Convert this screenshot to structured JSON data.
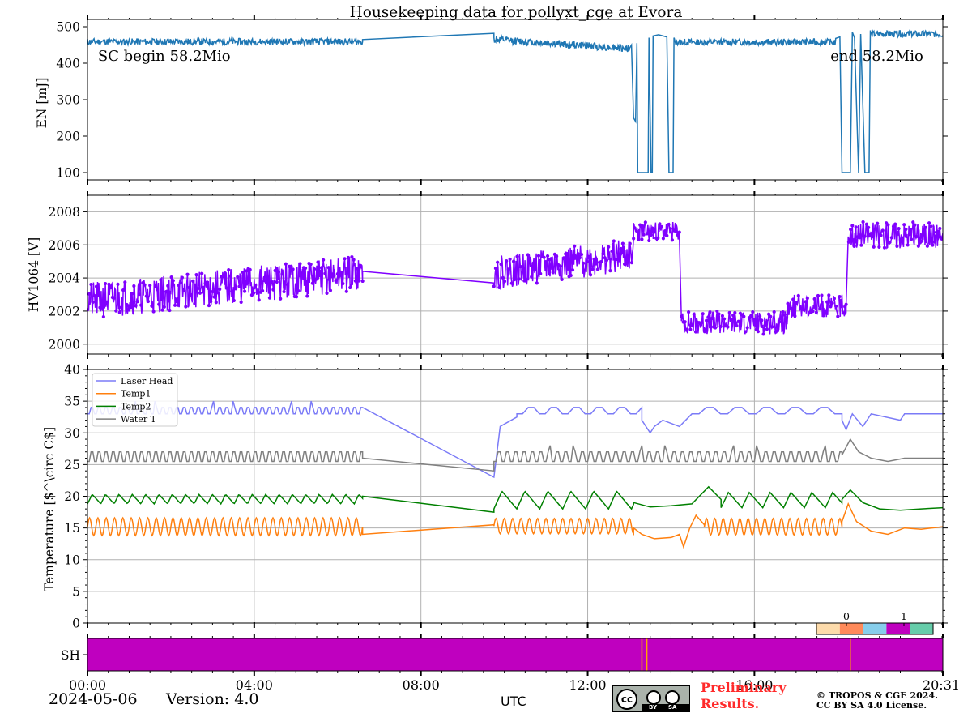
{
  "title": "Housekeeping data for pollyxt_cge at Evora",
  "date": "2024-05-06",
  "version_label": "Version: 4.0",
  "utc_label": "UTC",
  "preliminary_line1": "Preliminary",
  "preliminary_line2": "Results.",
  "copyright_line1": "© TROPOS & CGE 2024.",
  "copyright_line2": "CC BY SA 4.0 License.",
  "cc_badge": {
    "by": "BY",
    "sa": "SA",
    "cc": "cc"
  },
  "colors": {
    "energy": "#1f77b4",
    "hv": "#8000ff",
    "laser_head": "#7b7bf7",
    "temp1": "#ff7f0e",
    "temp2": "#008000",
    "water_t": "#808080",
    "sh_fill": "#bf00bf",
    "sh_mark": "#ffa500",
    "grid": "#b0b0b0",
    "preliminary": "#ff2a2a"
  },
  "chart_data": [
    {
      "type": "line",
      "panel": "energy",
      "ylabel": "EN [mJ]",
      "xlim": [
        0,
        20.52
      ],
      "ylim": [
        80,
        520
      ],
      "yticks": [
        100,
        200,
        300,
        400,
        500
      ],
      "grid": false,
      "annotations": [
        {
          "text": "SC begin 58.2Mio",
          "x": 0.25,
          "y": 420,
          "anchor": "start"
        },
        {
          "text": "end 58.2Mio",
          "x": 20.05,
          "y": 420,
          "anchor": "end"
        }
      ],
      "series": [
        {
          "color": "#1f77b4",
          "segments": [
            {
              "type": "noise",
              "x0": 0,
              "x1": 6.6,
              "base": 459,
              "amp": 9,
              "seed": 11
            },
            {
              "type": "points",
              "points": [
                [
                  6.6,
                  465
                ],
                [
                  9.75,
                  482
                ]
              ]
            },
            {
              "type": "noise",
              "x0": 9.75,
              "x1": 13.0,
              "base": 465,
              "amp": 10,
              "seed": 12,
              "trend": -25
            },
            {
              "type": "points",
              "points": [
                [
                  13.0,
                  440
                ],
                [
                  13.05,
                  450
                ],
                [
                  13.1,
                  250
                ],
                [
                  13.15,
                  240
                ],
                [
                  13.18,
                  455
                ],
                [
                  13.2,
                  100
                ],
                [
                  13.45,
                  100
                ],
                [
                  13.47,
                  470
                ],
                [
                  13.52,
                  100
                ],
                [
                  13.55,
                  100
                ],
                [
                  13.57,
                  475
                ],
                [
                  13.7,
                  478
                ],
                [
                  13.9,
                  472
                ],
                [
                  13.95,
                  100
                ],
                [
                  14.05,
                  100
                ],
                [
                  14.07,
                  470
                ]
              ]
            },
            {
              "type": "noise",
              "x0": 14.07,
              "x1": 17.95,
              "base": 458,
              "amp": 9,
              "seed": 13
            },
            {
              "type": "points",
              "points": [
                [
                  17.95,
                  468
                ],
                [
                  18.05,
                  472
                ],
                [
                  18.1,
                  100
                ],
                [
                  18.3,
                  100
                ],
                [
                  18.35,
                  485
                ],
                [
                  18.4,
                  470
                ],
                [
                  18.5,
                  100
                ],
                [
                  18.55,
                  480
                ],
                [
                  18.65,
                  100
                ],
                [
                  18.75,
                  100
                ],
                [
                  18.78,
                  490
                ]
              ]
            },
            {
              "type": "noise",
              "x0": 18.78,
              "x1": 20.52,
              "base": 480,
              "amp": 9,
              "seed": 14
            }
          ]
        }
      ]
    },
    {
      "type": "line",
      "panel": "hv",
      "ylabel": "HV1064 [V]",
      "xlim": [
        0,
        20.52
      ],
      "ylim": [
        1999.4,
        2009
      ],
      "yticks": [
        2000,
        2002,
        2004,
        2006,
        2008
      ],
      "grid": true,
      "markers": true,
      "series": [
        {
          "color": "#8000ff",
          "segments": [
            {
              "type": "noise",
              "x0": 0,
              "x1": 6.6,
              "base": 2002.6,
              "amp": 1.1,
              "seed": 21,
              "trend": 1.7
            },
            {
              "type": "points",
              "points": [
                [
                  6.6,
                  2004.4
                ],
                [
                  9.75,
                  2003.7
                ]
              ]
            },
            {
              "type": "noise",
              "x0": 9.75,
              "x1": 13.1,
              "base": 2004.3,
              "amp": 1.0,
              "seed": 22,
              "trend": 1.1
            },
            {
              "type": "noise",
              "x0": 13.1,
              "x1": 14.2,
              "base": 2006.8,
              "amp": 0.6,
              "seed": 23
            },
            {
              "type": "points",
              "points": [
                [
                  14.2,
                  2006.4
                ],
                [
                  14.25,
                  2001.4
                ]
              ]
            },
            {
              "type": "noise",
              "x0": 14.25,
              "x1": 16.8,
              "base": 2001.3,
              "amp": 0.7,
              "seed": 24
            },
            {
              "type": "noise",
              "x0": 16.8,
              "x1": 18.2,
              "base": 2002.3,
              "amp": 0.7,
              "seed": 25
            },
            {
              "type": "points",
              "points": [
                [
                  18.2,
                  2002.4
                ],
                [
                  18.25,
                  2006.5
                ]
              ]
            },
            {
              "type": "noise",
              "x0": 18.25,
              "x1": 20.52,
              "base": 2006.6,
              "amp": 0.8,
              "seed": 26
            }
          ]
        }
      ]
    },
    {
      "type": "line",
      "panel": "temperature",
      "ylabel": "Temperature [$^\\circ C$]",
      "xlim": [
        0,
        20.52
      ],
      "ylim": [
        0,
        40
      ],
      "yticks": [
        0,
        5,
        10,
        15,
        20,
        25,
        30,
        35,
        40
      ],
      "grid": true,
      "legend": "upper-left",
      "colorbar_ticks": [
        "0",
        "1"
      ],
      "colorbar_colors": [
        "#fddbab",
        "#ff8a5a",
        "#87ceeb",
        "#bf00bf",
        "#66cdaa"
      ],
      "series": [
        {
          "name": "Laser Head",
          "color": "#7b7bf7",
          "segments": [
            {
              "type": "square",
              "x0": 0,
              "x1": 6.6,
              "low": 33,
              "high": 34,
              "period": 0.17,
              "spikes": 35
            },
            {
              "type": "points",
              "points": [
                [
                  6.6,
                  34
                ],
                [
                  9.75,
                  23
                ],
                [
                  9.9,
                  31
                ],
                [
                  10.3,
                  32.5
                ]
              ]
            },
            {
              "type": "square",
              "x0": 10.3,
              "x1": 13.3,
              "low": 33,
              "high": 34,
              "period": 0.55,
              "spikes": 35.5
            },
            {
              "type": "points",
              "points": [
                [
                  13.3,
                  32
                ],
                [
                  13.5,
                  30
                ],
                [
                  13.6,
                  31
                ],
                [
                  13.8,
                  32
                ],
                [
                  14.2,
                  31
                ],
                [
                  14.5,
                  33
                ]
              ]
            },
            {
              "type": "square",
              "x0": 14.5,
              "x1": 18.1,
              "low": 33,
              "high": 34,
              "period": 0.7,
              "spikes": 35.5
            },
            {
              "type": "points",
              "points": [
                [
                  18.1,
                  32
                ],
                [
                  18.2,
                  30.5
                ],
                [
                  18.35,
                  33
                ],
                [
                  18.6,
                  31
                ],
                [
                  18.8,
                  33
                ],
                [
                  19.5,
                  32
                ],
                [
                  19.6,
                  33
                ],
                [
                  20.52,
                  33
                ]
              ]
            }
          ]
        },
        {
          "name": "Temp1",
          "color": "#ff7f0e",
          "segments": [
            {
              "type": "sine",
              "x0": 0,
              "x1": 6.6,
              "mid": 15.2,
              "amp": 1.4,
              "period": 0.2
            },
            {
              "type": "points",
              "points": [
                [
                  6.6,
                  14
                ],
                [
                  9.75,
                  15.5
                ]
              ]
            },
            {
              "type": "sine",
              "x0": 9.75,
              "x1": 13.1,
              "mid": 15.3,
              "amp": 1.2,
              "period": 0.2
            },
            {
              "type": "points",
              "points": [
                [
                  13.1,
                  15
                ],
                [
                  13.3,
                  14
                ],
                [
                  13.6,
                  13.3
                ],
                [
                  14.0,
                  13.5
                ],
                [
                  14.2,
                  14
                ],
                [
                  14.3,
                  12
                ],
                [
                  14.45,
                  15
                ],
                [
                  14.6,
                  17
                ],
                [
                  14.8,
                  15.5
                ]
              ]
            },
            {
              "type": "sine",
              "x0": 14.8,
              "x1": 18.1,
              "mid": 15.2,
              "amp": 1.3,
              "period": 0.2
            },
            {
              "type": "points",
              "points": [
                [
                  18.1,
                  16
                ],
                [
                  18.25,
                  18.8
                ],
                [
                  18.45,
                  16
                ],
                [
                  18.8,
                  14.5
                ],
                [
                  19.2,
                  14
                ],
                [
                  19.6,
                  15
                ],
                [
                  20.0,
                  14.8
                ],
                [
                  20.52,
                  15.2
                ]
              ]
            }
          ]
        },
        {
          "name": "Temp2",
          "color": "#008000",
          "segments": [
            {
              "type": "saw",
              "x0": 0,
              "x1": 6.6,
              "low": 18.8,
              "high": 20.3,
              "period": 0.32
            },
            {
              "type": "points",
              "points": [
                [
                  6.6,
                  20
                ],
                [
                  9.75,
                  17.5
                ]
              ]
            },
            {
              "type": "saw",
              "x0": 9.75,
              "x1": 13.1,
              "low": 18,
              "high": 20.8,
              "period": 0.55
            },
            {
              "type": "points",
              "points": [
                [
                  13.1,
                  19
                ],
                [
                  13.5,
                  18.3
                ],
                [
                  14.0,
                  18.5
                ],
                [
                  14.5,
                  18.8
                ],
                [
                  14.9,
                  21.5
                ],
                [
                  15.2,
                  19.5
                ]
              ]
            },
            {
              "type": "saw",
              "x0": 15.2,
              "x1": 18.1,
              "low": 18.2,
              "high": 20.6,
              "period": 0.5
            },
            {
              "type": "points",
              "points": [
                [
                  18.1,
                  19.5
                ],
                [
                  18.3,
                  21
                ],
                [
                  18.6,
                  19
                ],
                [
                  19.0,
                  18
                ],
                [
                  19.5,
                  17.8
                ],
                [
                  20.0,
                  18
                ],
                [
                  20.52,
                  18.2
                ]
              ]
            }
          ]
        },
        {
          "name": "Water T",
          "color": "#808080",
          "segments": [
            {
              "type": "square",
              "x0": 0,
              "x1": 6.6,
              "low": 25.5,
              "high": 27,
              "period": 0.17
            },
            {
              "type": "points",
              "points": [
                [
                  6.6,
                  26
                ],
                [
                  9.75,
                  24
                ]
              ]
            },
            {
              "type": "square",
              "x0": 9.75,
              "x1": 18.1,
              "low": 25.5,
              "high": 27,
              "period": 0.2,
              "spikes": 28
            },
            {
              "type": "points",
              "points": [
                [
                  18.1,
                  26.5
                ],
                [
                  18.3,
                  29
                ],
                [
                  18.5,
                  27
                ],
                [
                  18.8,
                  26
                ],
                [
                  19.2,
                  25.5
                ],
                [
                  19.6,
                  26
                ],
                [
                  20.52,
                  26
                ]
              ]
            }
          ]
        }
      ]
    },
    {
      "type": "heatmap",
      "panel": "sh",
      "ylabel": "SH",
      "xlim": [
        0,
        20.52
      ],
      "fill_color": "#bf00bf",
      "marks": [
        13.3,
        13.42,
        18.3
      ],
      "mark_color": "#ffa500",
      "xtick_labels": [
        "00:00",
        "04:00",
        "08:00",
        "12:00",
        "16:00",
        "20:31"
      ],
      "xtick_values": [
        0,
        4,
        8,
        12,
        16,
        20.52
      ]
    }
  ]
}
